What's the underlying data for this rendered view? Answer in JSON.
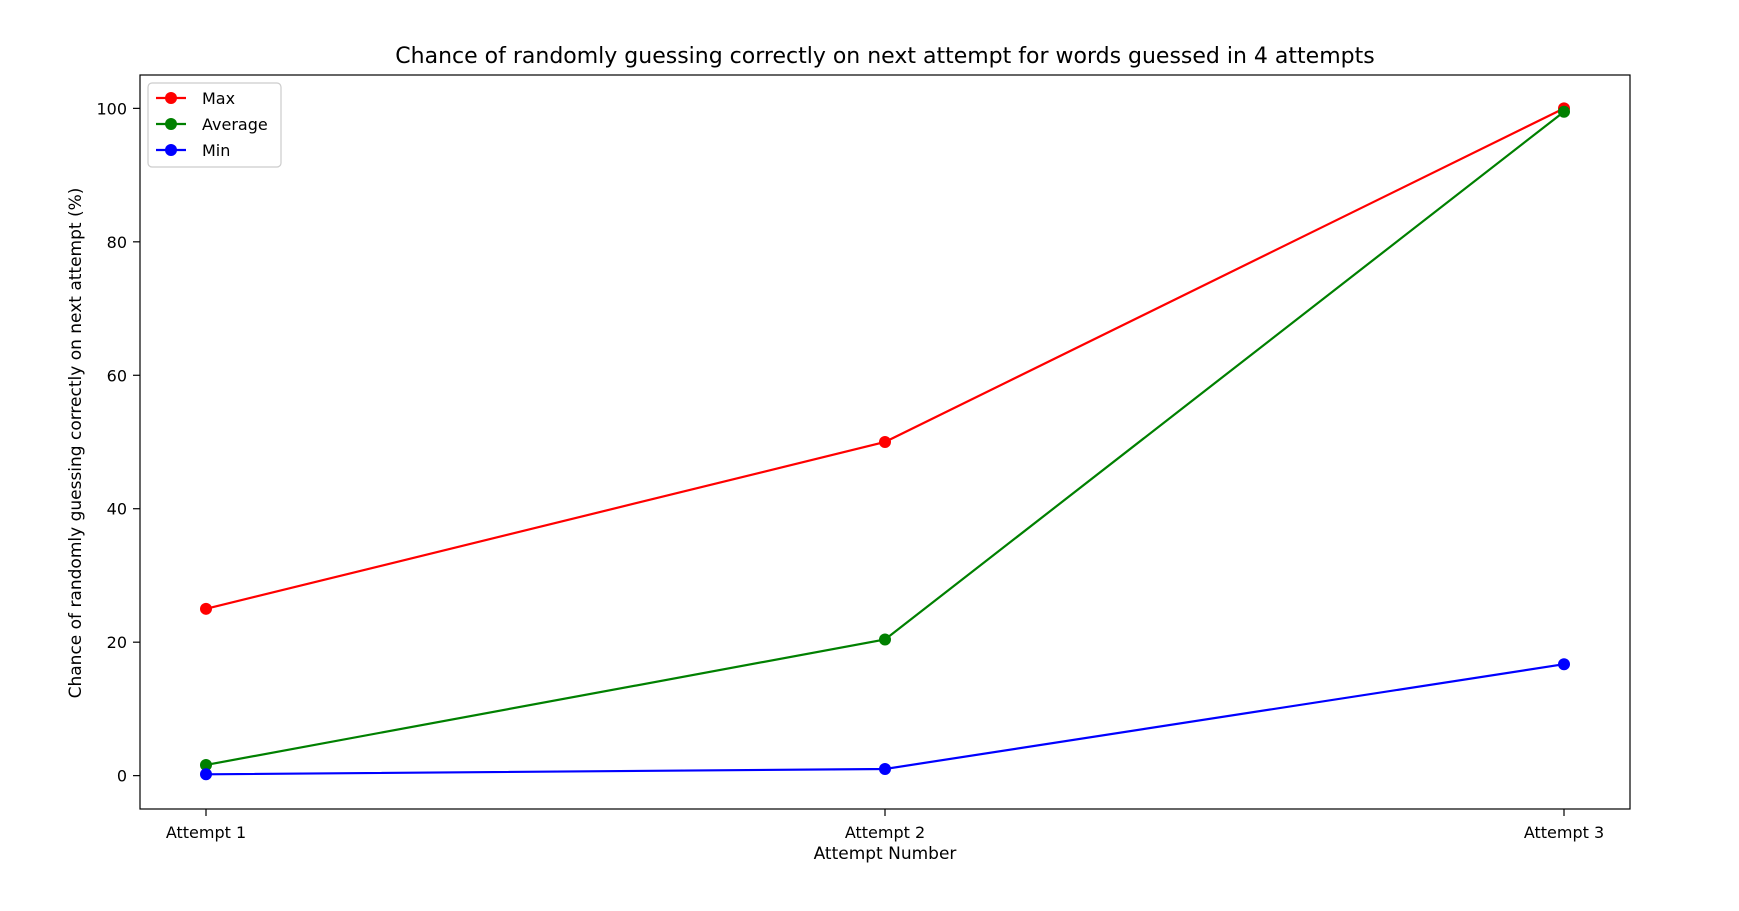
{
  "chart_data": {
    "type": "line",
    "title": "Chance of randomly guessing correctly on next attempt for words guessed in 4 attempts",
    "xlabel": "Attempt Number",
    "ylabel": "Chance of randomly guessing correctly on next attempt (%)",
    "categories": [
      "Attempt 1",
      "Attempt 2",
      "Attempt 3"
    ],
    "yticks": [
      0,
      20,
      40,
      60,
      80,
      100
    ],
    "ylim": [
      -5,
      105
    ],
    "grid": false,
    "legend_position": "upper-left",
    "series": [
      {
        "name": "Max",
        "color": "#ff0000",
        "values": [
          25,
          50,
          100
        ]
      },
      {
        "name": "Average",
        "color": "#008000",
        "values": [
          1.6,
          20.4,
          99.5
        ]
      },
      {
        "name": "Min",
        "color": "#0000ff",
        "values": [
          0.2,
          1.0,
          16.7
        ]
      }
    ]
  }
}
